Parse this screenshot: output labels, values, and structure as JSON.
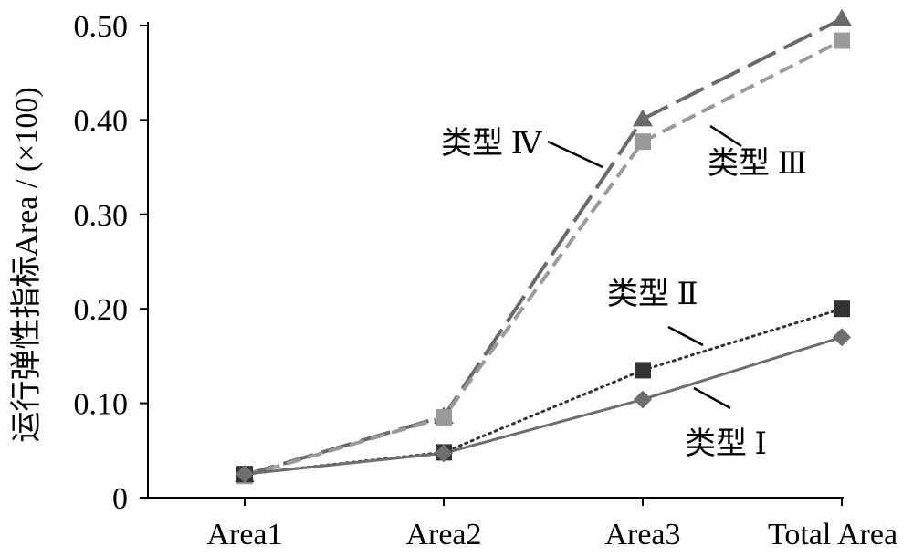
{
  "chart_data": {
    "type": "line",
    "categories": [
      "Area1",
      "Area2",
      "Area3",
      "Total Area"
    ],
    "ylabel": "运行弹性指标Area / (×100)",
    "xlabel": "",
    "ylim": [
      0,
      0.5
    ],
    "yticks": [
      "0",
      "0.10",
      "0.20",
      "0.30",
      "0.40",
      "0.50"
    ],
    "grid": false,
    "legend": "none (series labeled by annotations on the chart)",
    "series": [
      {
        "name": "类型 Ⅰ",
        "values": [
          0.025,
          0.047,
          0.104,
          0.17
        ],
        "color": "#6e6e6e",
        "marker": "diamond",
        "line": "solid"
      },
      {
        "name": "类型 Ⅱ",
        "values": [
          0.025,
          0.048,
          0.135,
          0.2
        ],
        "color": "#333333",
        "marker": "square",
        "line": "dotted"
      },
      {
        "name": "类型 Ⅲ",
        "values": [
          0.023,
          0.085,
          0.377,
          0.484
        ],
        "color": "#9a9a9a",
        "marker": "square",
        "line": "dashed"
      },
      {
        "name": "类型 Ⅳ",
        "values": [
          0.024,
          0.086,
          0.401,
          0.507
        ],
        "color": "#6a6a6a",
        "marker": "triangle",
        "line": "long-dash"
      }
    ]
  },
  "annotations": [
    {
      "text": "类型 Ⅰ",
      "series": 0
    },
    {
      "text": "类型 Ⅱ",
      "series": 1
    },
    {
      "text": "类型 Ⅲ",
      "series": 2
    },
    {
      "text": "类型 Ⅳ",
      "series": 3
    }
  ]
}
